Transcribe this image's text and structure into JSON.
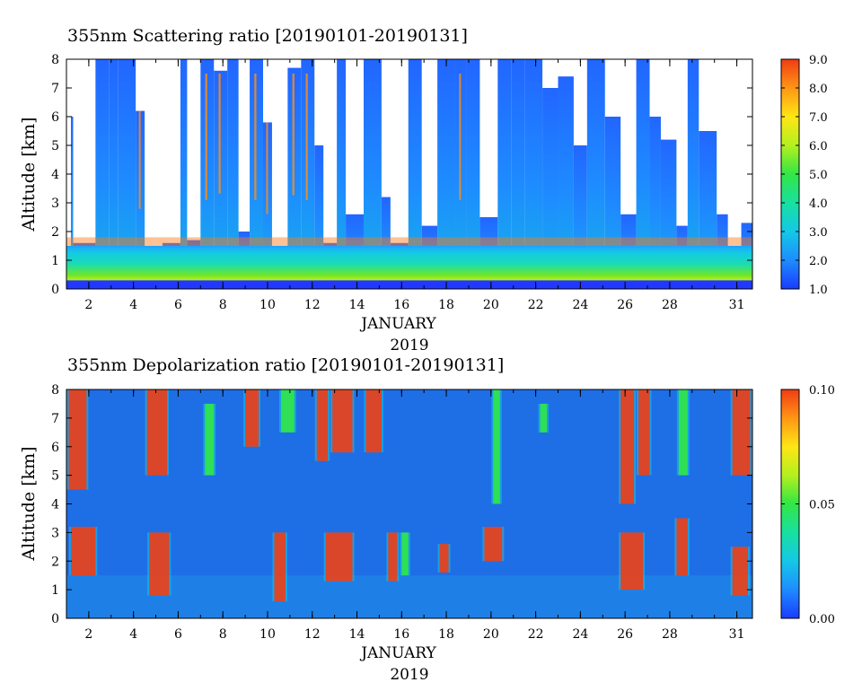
{
  "chart_data": [
    {
      "type": "heatmap",
      "title": "355nm Scattering ratio [20190101-20190131]",
      "ylabel": "Altitude [km]",
      "xlabel": "JANUARY",
      "xlabel2": "2019",
      "xlim": [
        1,
        31.7
      ],
      "ylim": [
        0,
        8
      ],
      "x_ticks": [
        2,
        4,
        6,
        8,
        10,
        12,
        14,
        16,
        18,
        20,
        22,
        24,
        26,
        28,
        31
      ],
      "y_ticks": [
        0,
        1,
        2,
        3,
        4,
        5,
        6,
        7,
        8
      ],
      "colorbar": {
        "min": 1.0,
        "max": 9.0,
        "ticks": [
          "1.0",
          "2.0",
          "3.0",
          "4.0",
          "5.0",
          "6.0",
          "7.0",
          "8.0",
          "9.0"
        ],
        "colors": [
          "#1a3cff",
          "#1e8cff",
          "#14c8e6",
          "#19e0a0",
          "#32e646",
          "#b4f01e",
          "#ffe614",
          "#ff9614",
          "#f03c14"
        ]
      },
      "missing_color": "#ffffff",
      "boundary_layer_top_km": 1.5,
      "low_cloud_top_km": 1.8,
      "columns": [
        {
          "x": [
            1.0,
            1.2
          ],
          "top": 0,
          "hi": 0
        },
        {
          "x": [
            1.2,
            1.3
          ],
          "top": 6.0,
          "hi": 0
        },
        {
          "x": [
            1.3,
            2.3
          ],
          "top": 1.6,
          "hi": 0
        },
        {
          "x": [
            2.3,
            2.9
          ],
          "top": 8.0,
          "hi": 0
        },
        {
          "x": [
            2.9,
            3.3
          ],
          "top": 8.0,
          "hi": 0
        },
        {
          "x": [
            3.3,
            4.1
          ],
          "top": 8.0,
          "hi": 0
        },
        {
          "x": [
            4.1,
            4.5
          ],
          "top": 6.2,
          "hi": 1
        },
        {
          "x": [
            4.5,
            5.0
          ],
          "top": 1.0,
          "hi": 0
        },
        {
          "x": [
            5.0,
            5.3
          ],
          "top": 0.6,
          "hi": 0
        },
        {
          "x": [
            5.3,
            6.1
          ],
          "top": 1.6,
          "hi": 0
        },
        {
          "x": [
            6.1,
            6.4
          ],
          "top": 8.0,
          "hi": 0
        },
        {
          "x": [
            6.4,
            7.0
          ],
          "top": 1.7,
          "hi": 0
        },
        {
          "x": [
            7.0,
            7.6
          ],
          "top": 8.0,
          "hi": 1
        },
        {
          "x": [
            7.6,
            8.2
          ],
          "top": 7.6,
          "hi": 1
        },
        {
          "x": [
            8.2,
            8.7
          ],
          "top": 8.0,
          "hi": 0
        },
        {
          "x": [
            8.7,
            9.2
          ],
          "top": 2.0,
          "hi": 0
        },
        {
          "x": [
            9.2,
            9.8
          ],
          "top": 8.0,
          "hi": 1
        },
        {
          "x": [
            9.8,
            10.2
          ],
          "top": 5.8,
          "hi": 1
        },
        {
          "x": [
            10.2,
            10.9
          ],
          "top": 1.0,
          "hi": 0
        },
        {
          "x": [
            10.9,
            11.5
          ],
          "top": 7.7,
          "hi": 1
        },
        {
          "x": [
            11.5,
            12.1
          ],
          "top": 8.0,
          "hi": 1
        },
        {
          "x": [
            12.1,
            12.5
          ],
          "top": 5.0,
          "hi": 0
        },
        {
          "x": [
            12.5,
            13.1
          ],
          "top": 1.6,
          "hi": 0
        },
        {
          "x": [
            13.1,
            13.5
          ],
          "top": 8.0,
          "hi": 0
        },
        {
          "x": [
            13.5,
            14.3
          ],
          "top": 2.6,
          "hi": 0
        },
        {
          "x": [
            14.3,
            15.1
          ],
          "top": 8.0,
          "hi": 0
        },
        {
          "x": [
            15.1,
            15.5
          ],
          "top": 3.2,
          "hi": 0
        },
        {
          "x": [
            15.5,
            16.3
          ],
          "top": 1.6,
          "hi": 0
        },
        {
          "x": [
            16.3,
            16.9
          ],
          "top": 8.0,
          "hi": 0
        },
        {
          "x": [
            16.9,
            17.6
          ],
          "top": 2.2,
          "hi": 0
        },
        {
          "x": [
            17.6,
            18.4
          ],
          "top": 8.0,
          "hi": 0
        },
        {
          "x": [
            18.4,
            18.9
          ],
          "top": 8.0,
          "hi": 1
        },
        {
          "x": [
            18.9,
            19.5
          ],
          "top": 8.0,
          "hi": 0
        },
        {
          "x": [
            19.5,
            20.3
          ],
          "top": 2.5,
          "hi": 0
        },
        {
          "x": [
            20.3,
            20.9
          ],
          "top": 8.0,
          "hi": 0
        },
        {
          "x": [
            20.9,
            21.5
          ],
          "top": 8.0,
          "hi": 0
        },
        {
          "x": [
            21.5,
            22.3
          ],
          "top": 8.0,
          "hi": 0
        },
        {
          "x": [
            22.3,
            23.0
          ],
          "top": 7.0,
          "hi": 0
        },
        {
          "x": [
            23.0,
            23.7
          ],
          "top": 7.4,
          "hi": 0
        },
        {
          "x": [
            23.7,
            24.3
          ],
          "top": 5.0,
          "hi": 0
        },
        {
          "x": [
            24.3,
            25.1
          ],
          "top": 8.0,
          "hi": 0
        },
        {
          "x": [
            25.1,
            25.8
          ],
          "top": 6.0,
          "hi": 0
        },
        {
          "x": [
            25.8,
            26.5
          ],
          "top": 2.6,
          "hi": 0
        },
        {
          "x": [
            26.5,
            27.1
          ],
          "top": 8.0,
          "hi": 0
        },
        {
          "x": [
            27.1,
            27.6
          ],
          "top": 6.0,
          "hi": 0
        },
        {
          "x": [
            27.6,
            28.3
          ],
          "top": 5.2,
          "hi": 0
        },
        {
          "x": [
            28.3,
            28.8
          ],
          "top": 2.2,
          "hi": 0
        },
        {
          "x": [
            28.8,
            29.3
          ],
          "top": 8.0,
          "hi": 0
        },
        {
          "x": [
            29.3,
            30.1
          ],
          "top": 5.5,
          "hi": 0
        },
        {
          "x": [
            30.1,
            30.6
          ],
          "top": 2.6,
          "hi": 0
        },
        {
          "x": [
            30.6,
            31.2
          ],
          "top": 0.8,
          "hi": 0
        },
        {
          "x": [
            31.2,
            31.7
          ],
          "top": 2.3,
          "hi": 0
        }
      ]
    },
    {
      "type": "heatmap",
      "title": "355nm Depolarization ratio [20190101-20190131]",
      "ylabel": "Altitude [km]",
      "xlabel": "JANUARY",
      "xlabel2": "2019",
      "xlim": [
        1,
        31.7
      ],
      "ylim": [
        0,
        8
      ],
      "x_ticks": [
        2,
        4,
        6,
        8,
        10,
        12,
        14,
        16,
        18,
        20,
        22,
        24,
        26,
        28,
        31
      ],
      "y_ticks": [
        0,
        1,
        2,
        3,
        4,
        5,
        6,
        7,
        8
      ],
      "colorbar": {
        "min": 0.0,
        "max": 0.1,
        "ticks": [
          "0.00",
          "0.05",
          "0.10"
        ],
        "colors": [
          "#1a3cff",
          "#1e8cff",
          "#14c8e6",
          "#19e0a0",
          "#32e646",
          "#b4f01e",
          "#ffe614",
          "#ff9614",
          "#f03c14"
        ]
      },
      "background_color": "#1e6ee6",
      "features": [
        {
          "x": [
            1.1,
            1.9
          ],
          "y": [
            4.5,
            8.0
          ],
          "level": "high"
        },
        {
          "x": [
            1.2,
            2.3
          ],
          "y": [
            1.5,
            3.2
          ],
          "level": "high"
        },
        {
          "x": [
            4.6,
            5.5
          ],
          "y": [
            5.0,
            8.0
          ],
          "level": "high"
        },
        {
          "x": [
            4.7,
            5.6
          ],
          "y": [
            0.8,
            3.0
          ],
          "level": "high"
        },
        {
          "x": [
            7.2,
            7.6
          ],
          "y": [
            5.0,
            7.5
          ],
          "level": "medium"
        },
        {
          "x": [
            9.0,
            9.6
          ],
          "y": [
            6.0,
            8.0
          ],
          "level": "high"
        },
        {
          "x": [
            10.3,
            10.8
          ],
          "y": [
            0.6,
            3.0
          ],
          "level": "high"
        },
        {
          "x": [
            10.6,
            11.2
          ],
          "y": [
            6.5,
            8.0
          ],
          "level": "medium"
        },
        {
          "x": [
            12.2,
            12.7
          ],
          "y": [
            5.5,
            8.0
          ],
          "level": "high"
        },
        {
          "x": [
            12.9,
            13.8
          ],
          "y": [
            5.8,
            8.0
          ],
          "level": "high"
        },
        {
          "x": [
            12.6,
            13.8
          ],
          "y": [
            1.3,
            3.0
          ],
          "level": "high"
        },
        {
          "x": [
            14.4,
            15.1
          ],
          "y": [
            5.8,
            8.0
          ],
          "level": "high"
        },
        {
          "x": [
            15.4,
            15.8
          ],
          "y": [
            1.3,
            3.0
          ],
          "level": "high"
        },
        {
          "x": [
            16.0,
            16.3
          ],
          "y": [
            1.5,
            3.0
          ],
          "level": "medium"
        },
        {
          "x": [
            17.7,
            18.1
          ],
          "y": [
            1.6,
            2.6
          ],
          "level": "high"
        },
        {
          "x": [
            19.7,
            20.5
          ],
          "y": [
            2.0,
            3.2
          ],
          "level": "high"
        },
        {
          "x": [
            20.1,
            20.4
          ],
          "y": [
            4.0,
            8.0
          ],
          "level": "medium"
        },
        {
          "x": [
            22.2,
            22.5
          ],
          "y": [
            6.5,
            7.5
          ],
          "level": "medium"
        },
        {
          "x": [
            25.8,
            26.4
          ],
          "y": [
            4.0,
            8.0
          ],
          "level": "high"
        },
        {
          "x": [
            25.8,
            26.8
          ],
          "y": [
            1.0,
            3.0
          ],
          "level": "high"
        },
        {
          "x": [
            26.6,
            27.1
          ],
          "y": [
            5.0,
            8.0
          ],
          "level": "high"
        },
        {
          "x": [
            28.3,
            28.8
          ],
          "y": [
            1.5,
            3.5
          ],
          "level": "high"
        },
        {
          "x": [
            28.4,
            28.8
          ],
          "y": [
            5.0,
            8.0
          ],
          "level": "medium"
        },
        {
          "x": [
            30.8,
            31.6
          ],
          "y": [
            5.0,
            8.0
          ],
          "level": "high"
        },
        {
          "x": [
            30.8,
            31.5
          ],
          "y": [
            0.8,
            2.5
          ],
          "level": "high"
        }
      ]
    }
  ]
}
